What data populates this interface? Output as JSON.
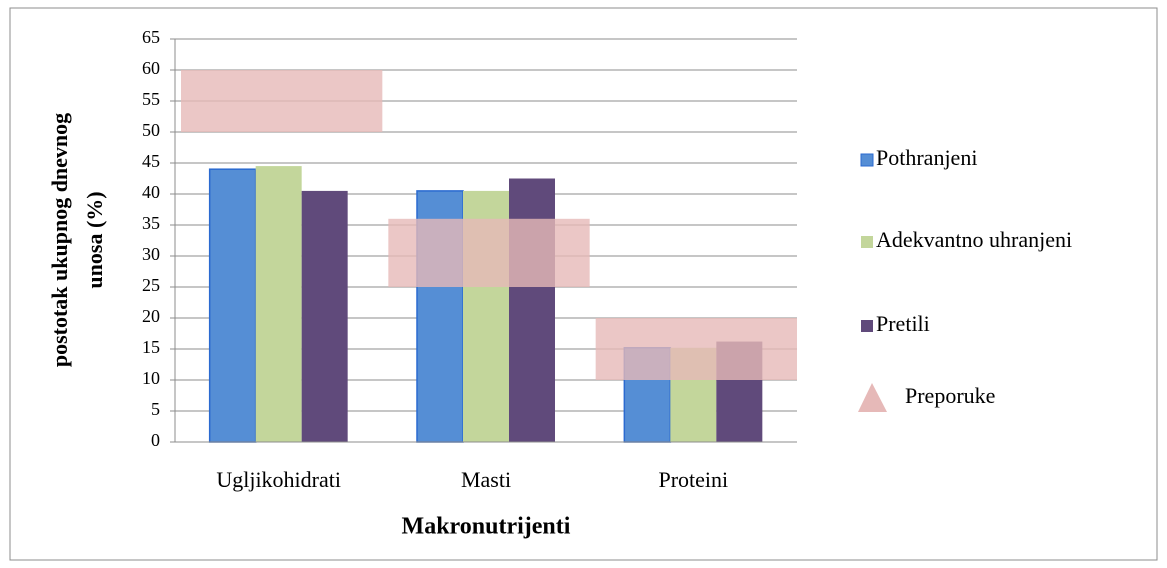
{
  "chart_data": {
    "type": "bar",
    "xlabel": "Makronutrijenti",
    "ylabel": [
      "postotak ukupnog dnevnog",
      "unosa (%)"
    ],
    "categories": [
      "Ugljikohidrati",
      "Masti",
      "Proteini"
    ],
    "series": [
      {
        "name": "Pothranjeni",
        "color": "#558ed5",
        "values": [
          44,
          40.5,
          15.2
        ]
      },
      {
        "name": "Adekvantno uhranjeni",
        "color": "#c3d69b",
        "values": [
          44.5,
          40.5,
          15.2
        ]
      },
      {
        "name": "Pretili",
        "color": "#604a7b",
        "values": [
          40.5,
          42.5,
          16.2
        ]
      },
      {
        "name": "Preporuke",
        "color": "#e6b9b8",
        "type": "range",
        "values": [
          [
            50,
            60
          ],
          [
            25,
            36
          ],
          [
            10,
            20
          ]
        ]
      }
    ],
    "ylim": [
      0,
      65
    ],
    "yticks": [
      0,
      5,
      10,
      15,
      20,
      25,
      30,
      35,
      40,
      45,
      50,
      55,
      60,
      65
    ],
    "grid": true,
    "legend": "right"
  }
}
